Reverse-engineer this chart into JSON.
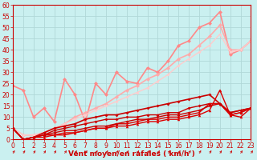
{
  "title": "",
  "xlabel": "Vent moyen/en rafales ( km/h )",
  "bg_color": "#caf0f0",
  "grid_color": "#b0d8d8",
  "x_min": 0,
  "x_max": 23,
  "y_min": 0,
  "y_max": 60,
  "yticks": [
    0,
    5,
    10,
    15,
    20,
    25,
    30,
    35,
    40,
    45,
    50,
    55,
    60
  ],
  "xticks": [
    0,
    1,
    2,
    3,
    4,
    5,
    6,
    7,
    8,
    9,
    10,
    11,
    12,
    13,
    14,
    15,
    16,
    17,
    18,
    19,
    20,
    21,
    22,
    23
  ],
  "lines": [
    {
      "x": [
        0,
        1,
        2,
        3,
        4,
        5,
        6,
        7,
        8,
        9,
        10,
        11,
        12,
        13,
        14,
        15,
        16,
        17,
        18,
        19,
        20,
        21,
        22,
        23
      ],
      "y": [
        5,
        0,
        1,
        2,
        2,
        3,
        3,
        4,
        5,
        5,
        6,
        6,
        7,
        8,
        8,
        9,
        9,
        10,
        11,
        13,
        22,
        11,
        10,
        14
      ],
      "color": "#dd0000",
      "lw": 1.0,
      "marker": "^",
      "ms": 2.5,
      "alpha": 1.0,
      "zorder": 4
    },
    {
      "x": [
        0,
        1,
        2,
        3,
        4,
        5,
        6,
        7,
        8,
        9,
        10,
        11,
        12,
        13,
        14,
        15,
        16,
        17,
        18,
        19,
        20,
        21,
        22,
        23
      ],
      "y": [
        5,
        0,
        1,
        1,
        2,
        2,
        3,
        4,
        5,
        5,
        7,
        7,
        8,
        9,
        9,
        10,
        10,
        11,
        12,
        16,
        16,
        11,
        12,
        14
      ],
      "color": "#dd0000",
      "lw": 1.0,
      "marker": "^",
      "ms": 2.5,
      "alpha": 1.0,
      "zorder": 4
    },
    {
      "x": [
        0,
        1,
        2,
        3,
        4,
        5,
        6,
        7,
        8,
        9,
        10,
        11,
        12,
        13,
        14,
        15,
        16,
        17,
        18,
        19,
        20,
        21,
        22,
        23
      ],
      "y": [
        5,
        0,
        1,
        2,
        3,
        4,
        4,
        5,
        6,
        6,
        7,
        8,
        9,
        9,
        10,
        11,
        11,
        12,
        13,
        15,
        16,
        12,
        13,
        14
      ],
      "color": "#cc0000",
      "lw": 1.0,
      "marker": "D",
      "ms": 2,
      "alpha": 1.0,
      "zorder": 4
    },
    {
      "x": [
        0,
        1,
        2,
        3,
        4,
        5,
        6,
        7,
        8,
        9,
        10,
        11,
        12,
        13,
        14,
        15,
        16,
        17,
        18,
        19,
        20,
        21,
        22,
        23
      ],
      "y": [
        5,
        0,
        1,
        2,
        4,
        5,
        6,
        7,
        8,
        9,
        9,
        10,
        10,
        11,
        11,
        12,
        12,
        14,
        15,
        16,
        16,
        11,
        12,
        14
      ],
      "color": "#cc0000",
      "lw": 1.0,
      "marker": "D",
      "ms": 2,
      "alpha": 1.0,
      "zorder": 3
    },
    {
      "x": [
        0,
        1,
        2,
        3,
        4,
        5,
        6,
        7,
        8,
        9,
        10,
        11,
        12,
        13,
        14,
        15,
        16,
        17,
        18,
        19,
        20,
        21,
        22,
        23
      ],
      "y": [
        5,
        0,
        1,
        3,
        5,
        6,
        7,
        9,
        10,
        11,
        11,
        12,
        13,
        14,
        15,
        16,
        17,
        18,
        19,
        20,
        16,
        12,
        13,
        14
      ],
      "color": "#cc0000",
      "lw": 1.2,
      "marker": "D",
      "ms": 2,
      "alpha": 1.0,
      "zorder": 3
    },
    {
      "x": [
        0,
        1,
        2,
        3,
        4,
        5,
        6,
        7,
        8,
        9,
        10,
        11,
        12,
        13,
        14,
        15,
        16,
        17,
        18,
        19,
        20,
        21,
        22,
        23
      ],
      "y": [
        24,
        22,
        10,
        14,
        8,
        27,
        20,
        8,
        25,
        20,
        30,
        26,
        25,
        32,
        30,
        35,
        42,
        44,
        50,
        52,
        57,
        38,
        40,
        44
      ],
      "color": "#ff8888",
      "lw": 1.2,
      "marker": "D",
      "ms": 2.5,
      "alpha": 1.0,
      "zorder": 2
    },
    {
      "x": [
        0,
        1,
        2,
        3,
        4,
        5,
        6,
        7,
        8,
        9,
        10,
        11,
        12,
        13,
        14,
        15,
        16,
        17,
        18,
        19,
        20,
        21,
        22,
        23
      ],
      "y": [
        5,
        2,
        2,
        3,
        5,
        7,
        10,
        12,
        14,
        16,
        19,
        22,
        24,
        27,
        29,
        32,
        36,
        38,
        42,
        46,
        51,
        40,
        40,
        44
      ],
      "color": "#ffaaaa",
      "lw": 1.2,
      "marker": "D",
      "ms": 2.5,
      "alpha": 1.0,
      "zorder": 2
    },
    {
      "x": [
        0,
        1,
        2,
        3,
        4,
        5,
        6,
        7,
        8,
        9,
        10,
        11,
        12,
        13,
        14,
        15,
        16,
        17,
        18,
        19,
        20,
        21,
        22,
        23
      ],
      "y": [
        5,
        2,
        2,
        3,
        5,
        7,
        9,
        11,
        13,
        15,
        17,
        19,
        21,
        23,
        26,
        29,
        33,
        36,
        39,
        42,
        47,
        39,
        40,
        44
      ],
      "color": "#ffcccc",
      "lw": 1.0,
      "marker": "D",
      "ms": 2,
      "alpha": 1.0,
      "zorder": 2
    }
  ],
  "arrow_color": "#cc0000",
  "axis_color": "#cc0000",
  "tick_color": "#cc0000",
  "label_color": "#cc0000",
  "label_fontsize": 6.5,
  "tick_fontsize": 5.5
}
